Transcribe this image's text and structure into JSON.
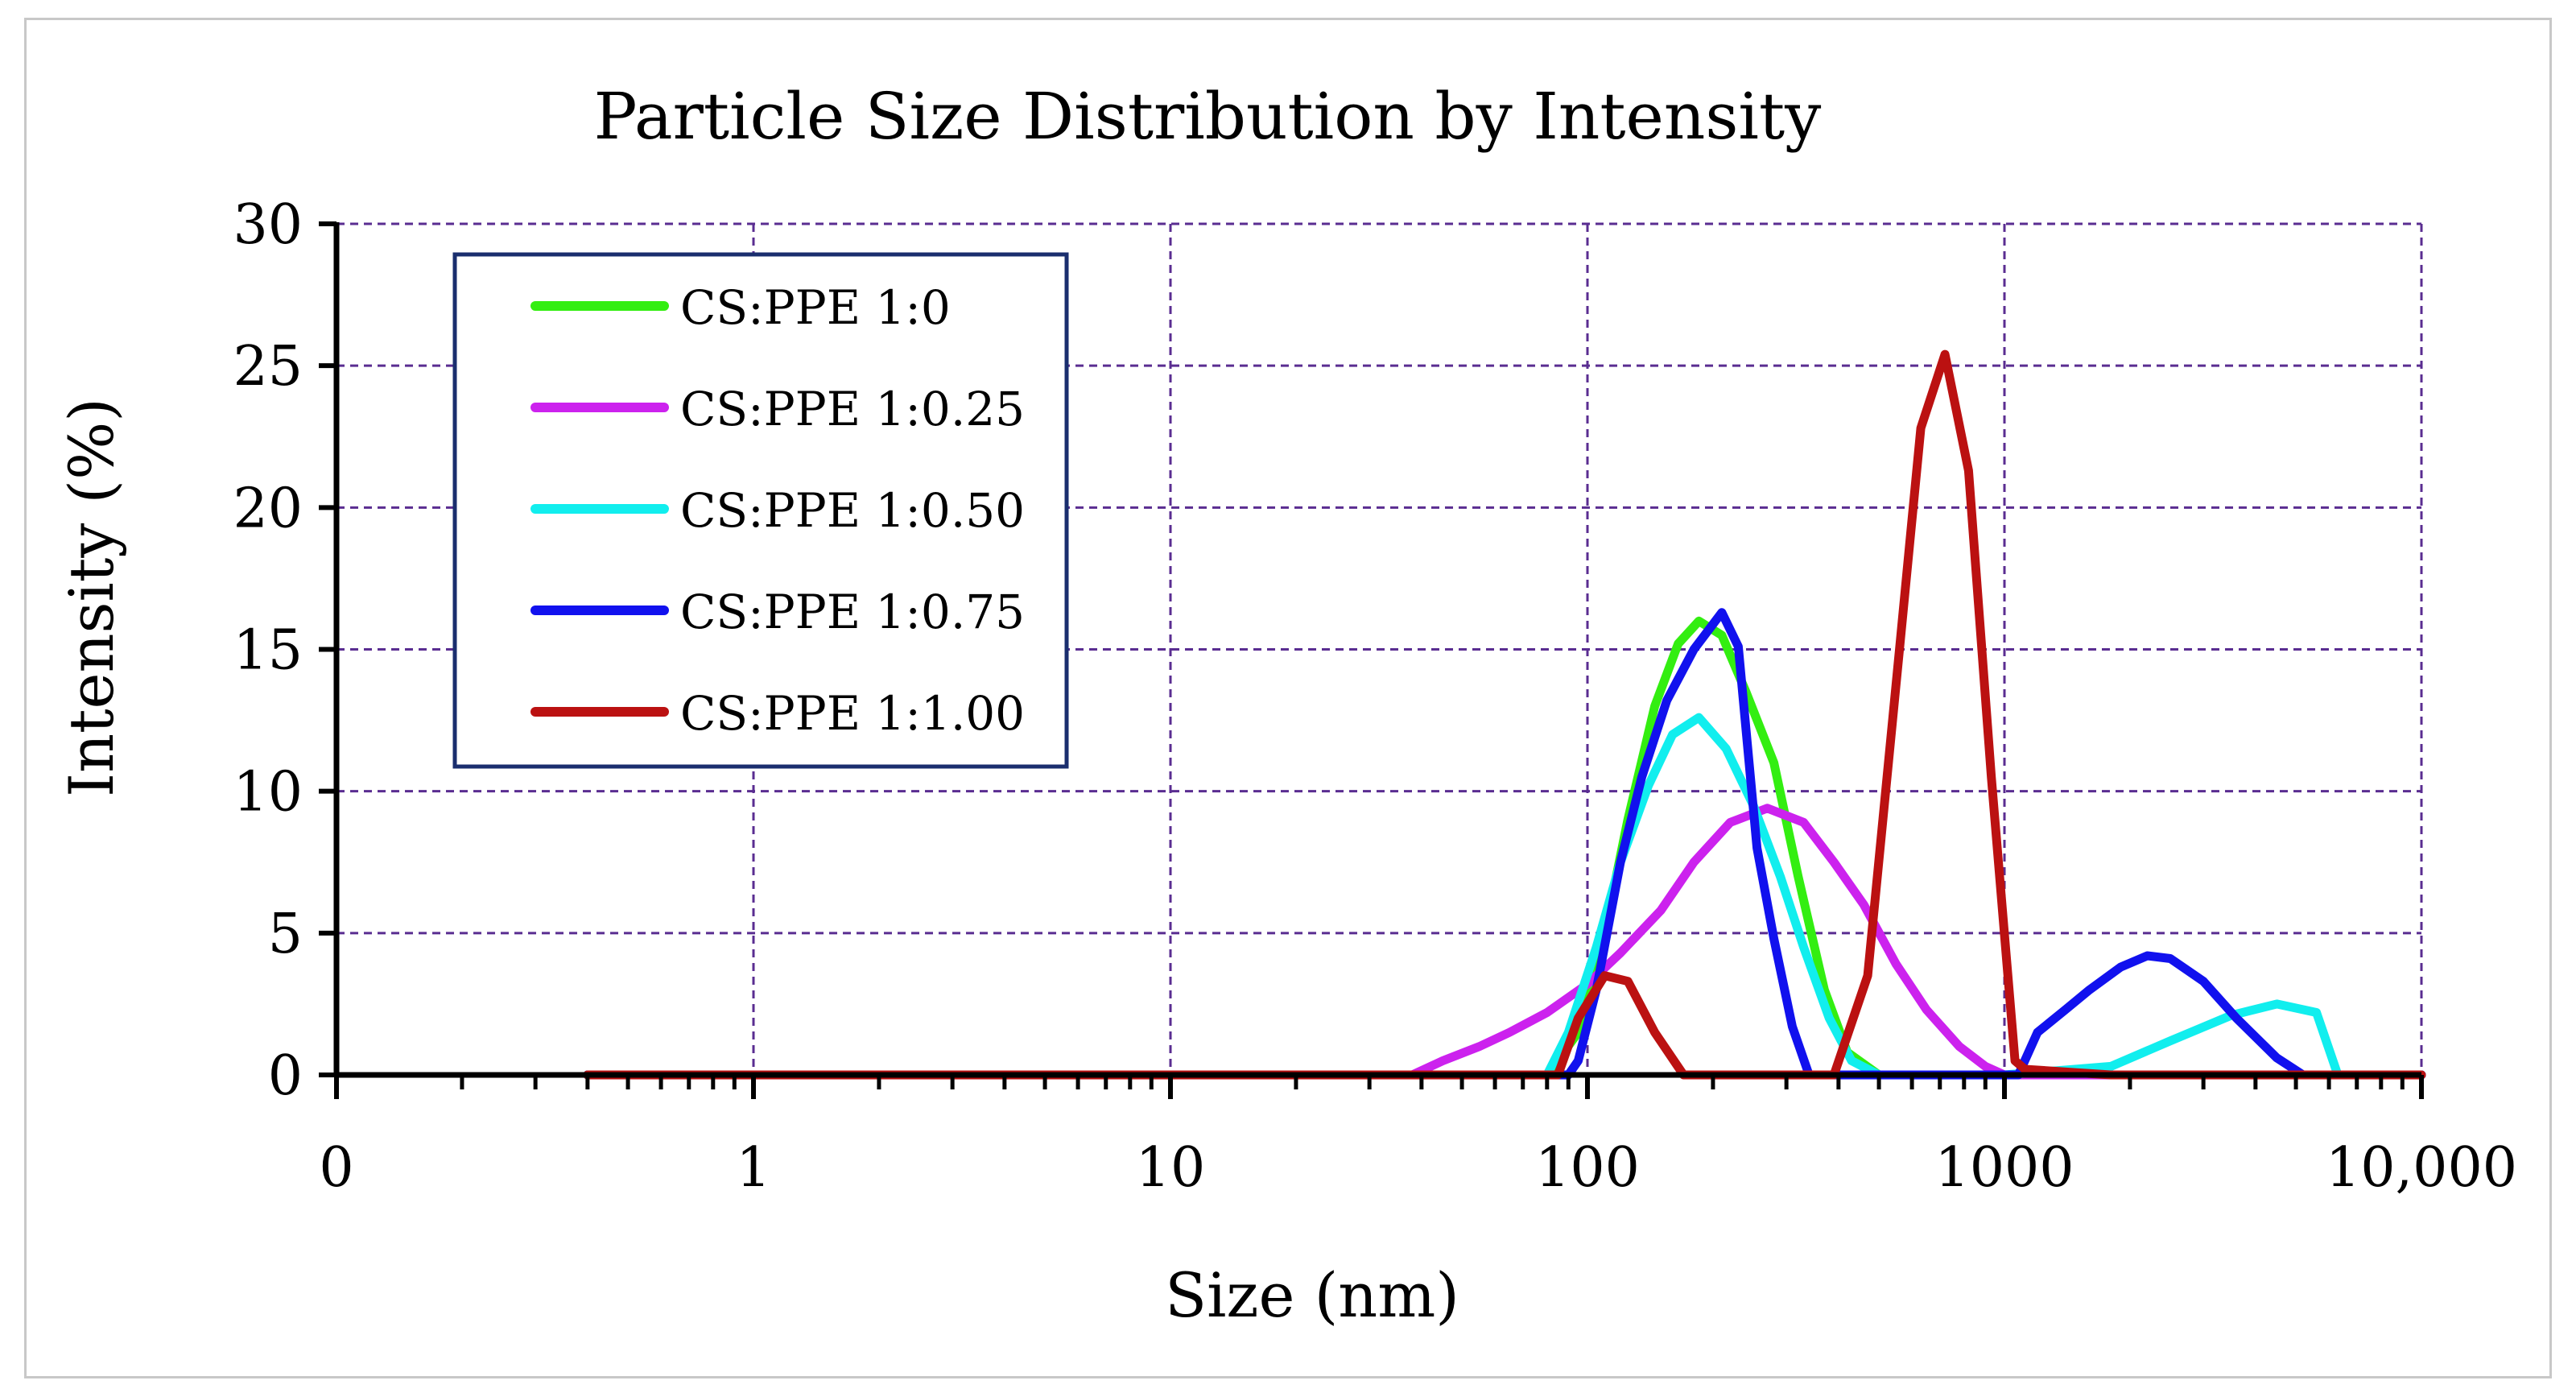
{
  "chart_data": {
    "type": "line",
    "title": "Particle Size Distribution by Intensity",
    "xlabel": "Size (nm)",
    "ylabel": "Intensity (%)",
    "x_scale": "log",
    "x_ticks": [
      {
        "value": 0.1,
        "label": "0"
      },
      {
        "value": 1,
        "label": "1"
      },
      {
        "value": 10,
        "label": "10"
      },
      {
        "value": 100,
        "label": "100"
      },
      {
        "value": 1000,
        "label": "1000"
      },
      {
        "value": 10000,
        "label": "10,000"
      }
    ],
    "xlim": [
      0.1,
      10000
    ],
    "ylim": [
      0,
      30
    ],
    "y_ticks": [
      0,
      5,
      10,
      15,
      20,
      25,
      30
    ],
    "grid": true,
    "legend_position": "top-left",
    "series": [
      {
        "name": "CS:PPE 1:0",
        "color": "#33ee11",
        "x": [
          0.4,
          80,
          95,
          110,
          125,
          145,
          165,
          185,
          210,
          240,
          280,
          320,
          370,
          420,
          500,
          1000,
          10000
        ],
        "y": [
          0,
          0,
          1.5,
          5,
          9,
          13,
          15.2,
          16,
          15.5,
          13.5,
          11,
          7,
          3,
          0.8,
          0,
          0,
          0
        ]
      },
      {
        "name": "CS:PPE 1:0.25",
        "color": "#cc22ee",
        "x": [
          0.4,
          38,
          45,
          55,
          65,
          80,
          100,
          120,
          150,
          180,
          220,
          270,
          330,
          390,
          460,
          550,
          650,
          780,
          900,
          1000,
          10000
        ],
        "y": [
          0,
          0,
          0.5,
          1.0,
          1.5,
          2.2,
          3.2,
          4.3,
          5.8,
          7.5,
          8.9,
          9.4,
          8.9,
          7.5,
          6.0,
          3.9,
          2.3,
          1.0,
          0.3,
          0,
          0
        ]
      },
      {
        "name": "CS:PPE 1:0.50",
        "color": "#11eeee",
        "x": [
          0.4,
          80,
          90,
          105,
          120,
          140,
          160,
          185,
          215,
          250,
          290,
          330,
          380,
          430,
          500,
          1000,
          1800,
          2500,
          3500,
          4500,
          5600,
          6300,
          10000
        ],
        "y": [
          0,
          0,
          1.5,
          4.5,
          7.5,
          10.2,
          12,
          12.6,
          11.5,
          9.5,
          7,
          4.5,
          2,
          0.5,
          0,
          0,
          0.3,
          1.2,
          2.1,
          2.5,
          2.2,
          0,
          0
        ]
      },
      {
        "name": "CS:PPE 1:0.75",
        "color": "#1111ee",
        "x": [
          0.4,
          90,
          95,
          105,
          120,
          135,
          155,
          180,
          210,
          230,
          255,
          280,
          310,
          340,
          380,
          1080,
          1200,
          1400,
          1600,
          1900,
          2200,
          2500,
          3000,
          3600,
          4500,
          5200,
          10000
        ],
        "y": [
          0,
          0,
          0.5,
          3,
          7.5,
          10.5,
          13.2,
          15,
          16.3,
          15.1,
          8,
          4.8,
          1.7,
          0,
          0,
          0,
          1.5,
          2.3,
          3.0,
          3.8,
          4.2,
          4.1,
          3.3,
          2.0,
          0.6,
          0,
          0
        ]
      },
      {
        "name": "CS:PPE 1:1.00",
        "color": "#bb1111",
        "x": [
          0.4,
          85,
          95,
          110,
          125,
          145,
          170,
          200,
          390,
          470,
          560,
          630,
          720,
          820,
          930,
          1060,
          1120,
          1800,
          10000
        ],
        "y": [
          0,
          0,
          2,
          3.5,
          3.3,
          1.5,
          0,
          0,
          0,
          3.5,
          15,
          22.8,
          25.4,
          21.3,
          10.5,
          0.5,
          0.2,
          0,
          0
        ]
      }
    ]
  }
}
